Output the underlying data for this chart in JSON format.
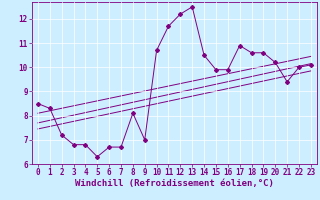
{
  "main_line_x": [
    0,
    1,
    2,
    3,
    4,
    5,
    6,
    7,
    8,
    9,
    10,
    11,
    12,
    13,
    14,
    15,
    16,
    17,
    18,
    19,
    20,
    21,
    22,
    23
  ],
  "main_line_y": [
    8.5,
    8.3,
    7.2,
    6.8,
    6.8,
    6.3,
    6.7,
    6.7,
    8.1,
    7.0,
    10.7,
    11.7,
    12.2,
    12.5,
    10.5,
    9.9,
    9.9,
    10.9,
    10.6,
    10.6,
    10.2,
    9.4,
    10.0,
    10.1
  ],
  "reg_line1_x": [
    0,
    23
  ],
  "reg_line1_y": [
    7.7,
    10.15
  ],
  "reg_line2_x": [
    0,
    23
  ],
  "reg_line2_y": [
    8.1,
    10.45
  ],
  "reg_line3_x": [
    0,
    23
  ],
  "reg_line3_y": [
    7.45,
    9.85
  ],
  "xlim": [
    -0.5,
    23.5
  ],
  "ylim": [
    6,
    12.7
  ],
  "xticks": [
    0,
    1,
    2,
    3,
    4,
    5,
    6,
    7,
    8,
    9,
    10,
    11,
    12,
    13,
    14,
    15,
    16,
    17,
    18,
    19,
    20,
    21,
    22,
    23
  ],
  "yticks": [
    6,
    7,
    8,
    9,
    10,
    11,
    12
  ],
  "xlabel": "Windchill (Refroidissement éolien,°C)",
  "line_color": "#800080",
  "bg_color": "#cceeff",
  "tick_label_fontsize": 5.5,
  "xlabel_fontsize": 6.5
}
